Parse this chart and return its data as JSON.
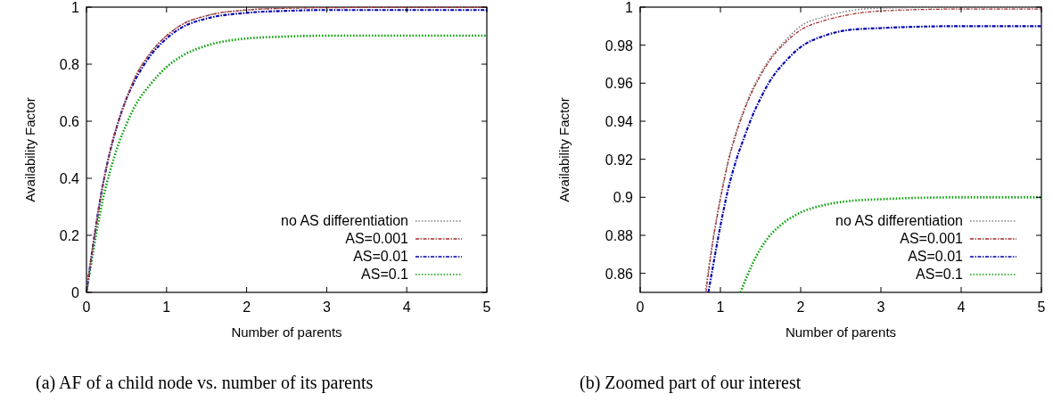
{
  "chart_data": [
    {
      "type": "line",
      "title": "(a)  AF of a child node vs. number of its parents",
      "xlabel": "Number of parents",
      "ylabel": "Availability Factor",
      "xlim": [
        0,
        5
      ],
      "ylim": [
        0,
        1
      ],
      "xticks": [
        0,
        1,
        2,
        3,
        4,
        5
      ],
      "yticks": [
        0,
        0.2,
        0.4,
        0.6,
        0.8,
        1
      ],
      "grid": false,
      "legend": "bottom right",
      "marker": "none",
      "series": [
        {
          "name": "no AS differentiation",
          "color": "#808080",
          "line_style": "dotted",
          "x": [
            0,
            0.1,
            0.2,
            0.3,
            0.4,
            0.5,
            0.6,
            0.8,
            1,
            1.2,
            1.5,
            2,
            2.5,
            3,
            4,
            5
          ],
          "values": [
            0,
            0.2,
            0.37,
            0.5,
            0.6,
            0.68,
            0.75,
            0.84,
            0.9,
            0.94,
            0.97,
            0.99,
            0.997,
            1,
            1,
            1
          ]
        },
        {
          "name": "AS=0.001",
          "color": "#a52a2a",
          "line_style": "dashed",
          "x": [
            0,
            0.1,
            0.2,
            0.3,
            0.4,
            0.5,
            0.6,
            0.8,
            1,
            1.2,
            1.5,
            2,
            2.5,
            3,
            4,
            5
          ],
          "values": [
            0,
            0.2,
            0.37,
            0.5,
            0.6,
            0.68,
            0.75,
            0.84,
            0.9,
            0.94,
            0.97,
            0.99,
            0.996,
            0.998,
            0.999,
            0.999
          ]
        },
        {
          "name": "AS=0.01",
          "color": "#0000b0",
          "line_style": "dashed",
          "x": [
            0,
            0.1,
            0.2,
            0.3,
            0.4,
            0.5,
            0.6,
            0.8,
            1,
            1.2,
            1.5,
            2,
            2.5,
            3,
            4,
            5
          ],
          "values": [
            0,
            0.2,
            0.37,
            0.5,
            0.6,
            0.68,
            0.74,
            0.83,
            0.89,
            0.93,
            0.96,
            0.98,
            0.987,
            0.99,
            0.99,
            0.99
          ]
        },
        {
          "name": "AS=0.1",
          "color": "#00a000",
          "line_style": "dotted",
          "x": [
            0,
            0.1,
            0.2,
            0.3,
            0.4,
            0.5,
            0.6,
            0.8,
            1,
            1.2,
            1.5,
            2,
            2.5,
            3,
            4,
            5
          ],
          "values": [
            0,
            0.17,
            0.32,
            0.43,
            0.52,
            0.59,
            0.65,
            0.73,
            0.79,
            0.83,
            0.865,
            0.89,
            0.897,
            0.9,
            0.9,
            0.9
          ]
        }
      ]
    },
    {
      "type": "line",
      "title": "(b)  Zoomed part of our interest",
      "xlabel": "Number of parents",
      "ylabel": "Availability Factor",
      "xlim": [
        0,
        5
      ],
      "ylim": [
        0.85,
        1
      ],
      "xticks": [
        0,
        1,
        2,
        3,
        4,
        5
      ],
      "yticks": [
        {
          "value": 0.86,
          "label": "0.86"
        },
        {
          "value": 0.88,
          "label": "0.88"
        },
        {
          "value": 0.9,
          "label": "0.9"
        },
        {
          "value": 0.92,
          "label": "0.92"
        },
        {
          "value": 0.94,
          "label": "0.94"
        },
        {
          "value": 0.96,
          "label": "0.96"
        },
        {
          "value": 0.98,
          "label": "0.98"
        },
        {
          "value": 1,
          "label": "1"
        }
      ],
      "grid": false,
      "legend": "bottom right",
      "marker": "none",
      "series": [
        {
          "name": "no AS differentiation",
          "color": "#808080",
          "line_style": "dotted",
          "x": [
            0.81,
            0.9,
            1,
            1.1,
            1.2,
            1.3,
            1.4,
            1.5,
            1.6,
            1.8,
            2,
            2.3,
            2.6,
            3,
            4,
            5
          ],
          "values": [
            0.85,
            0.876,
            0.9,
            0.92,
            0.935,
            0.947,
            0.957,
            0.965,
            0.972,
            0.982,
            0.99,
            0.995,
            0.998,
            0.9995,
            1,
            1
          ]
        },
        {
          "name": "AS=0.001",
          "color": "#a52a2a",
          "line_style": "dashed",
          "x": [
            0.82,
            0.9,
            1,
            1.1,
            1.2,
            1.3,
            1.4,
            1.5,
            1.6,
            1.8,
            2,
            2.3,
            2.6,
            3,
            4,
            5
          ],
          "values": [
            0.85,
            0.875,
            0.899,
            0.919,
            0.934,
            0.946,
            0.956,
            0.964,
            0.971,
            0.981,
            0.988,
            0.993,
            0.996,
            0.998,
            0.999,
            0.999
          ]
        },
        {
          "name": "AS=0.01",
          "color": "#0000b0",
          "line_style": "dashed",
          "x": [
            0.85,
            0.9,
            1,
            1.1,
            1.2,
            1.3,
            1.4,
            1.5,
            1.6,
            1.8,
            2,
            2.3,
            2.6,
            3,
            4,
            5
          ],
          "values": [
            0.85,
            0.862,
            0.885,
            0.905,
            0.92,
            0.932,
            0.943,
            0.952,
            0.96,
            0.971,
            0.979,
            0.985,
            0.988,
            0.989,
            0.99,
            0.99
          ]
        },
        {
          "name": "AS=0.1",
          "color": "#00a000",
          "line_style": "dotted",
          "x": [
            1.25,
            1.4,
            1.5,
            1.6,
            1.8,
            2,
            2.3,
            2.6,
            3,
            4,
            5
          ],
          "values": [
            0.85,
            0.865,
            0.873,
            0.879,
            0.887,
            0.892,
            0.896,
            0.898,
            0.899,
            0.9,
            0.9
          ]
        }
      ]
    }
  ]
}
